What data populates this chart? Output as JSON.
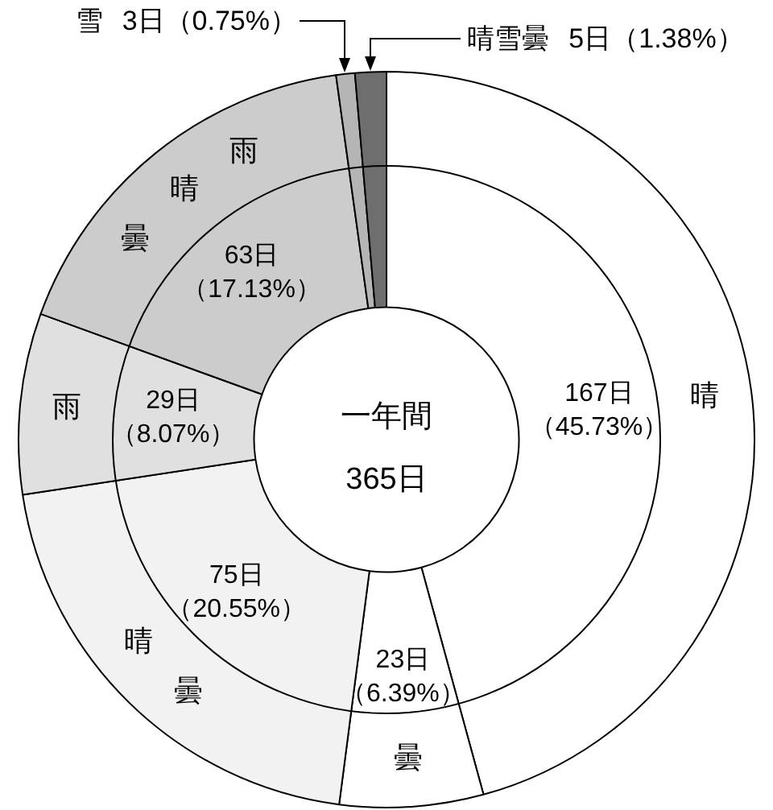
{
  "chart_data": {
    "type": "donut",
    "categories": [
      "晴",
      "曇",
      "晴曇",
      "雨",
      "雨晴曇",
      "雪",
      "晴雪曇"
    ],
    "values": [
      167,
      23,
      75,
      29,
      63,
      3,
      5
    ],
    "colors": [
      "#ffffff",
      "#ffffff",
      "#f2f2f2",
      "#e0e0e0",
      "#cccccc",
      "#b5b5b5",
      "#6e6e6e"
    ],
    "value_labels": [
      "167日（45.73%）",
      "23日（6.39%）",
      "75日（20.55%）",
      "29日（8.07%）",
      "63日（17.13%）",
      "3日（0.75%）",
      "5日（1.38%）"
    ],
    "annotations": [
      "一年間",
      "365日"
    ]
  }
}
